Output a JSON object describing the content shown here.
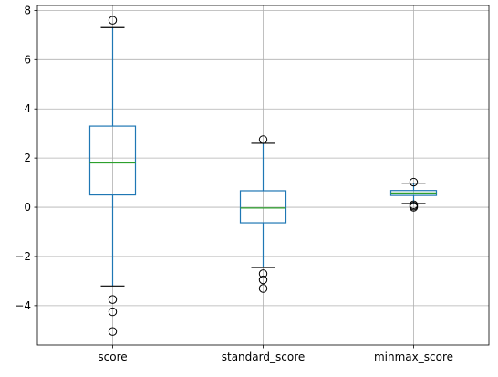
{
  "chart_data": {
    "type": "boxplot",
    "title": "",
    "xlabel": "",
    "ylabel": "",
    "categories": [
      "score",
      "standard_score",
      "minmax_score"
    ],
    "ylim": [
      -5.6,
      8.2
    ],
    "y_ticks": [
      -4,
      -2,
      0,
      2,
      4,
      6,
      8
    ],
    "y_tick_labels": [
      "−4",
      "−2",
      "0",
      "2",
      "4",
      "6",
      "8"
    ],
    "grid": true,
    "boxes": [
      {
        "name": "score",
        "whisker_low": -3.2,
        "q1": 0.5,
        "median": 1.8,
        "q3": 3.3,
        "whisker_high": 7.3,
        "outliers": [
          7.6,
          -3.75,
          -4.25,
          -5.05
        ]
      },
      {
        "name": "standard_score",
        "whisker_low": -2.45,
        "q1": -0.63,
        "median": -0.03,
        "q3": 0.67,
        "whisker_high": 2.6,
        "outliers": [
          2.75,
          -2.7,
          -2.95,
          -3.3
        ]
      },
      {
        "name": "minmax_score",
        "whisker_low": 0.15,
        "q1": 0.48,
        "median": 0.58,
        "q3": 0.68,
        "whisker_high": 0.98,
        "outliers": [
          1.02,
          0.05,
          0.1,
          0.0
        ]
      }
    ],
    "colors": {
      "box": "#1f77b4",
      "median": "#2ca02c",
      "whisker_cap": "#000000",
      "outlier_edge": "#000000",
      "grid": "#b0b0b0"
    }
  }
}
